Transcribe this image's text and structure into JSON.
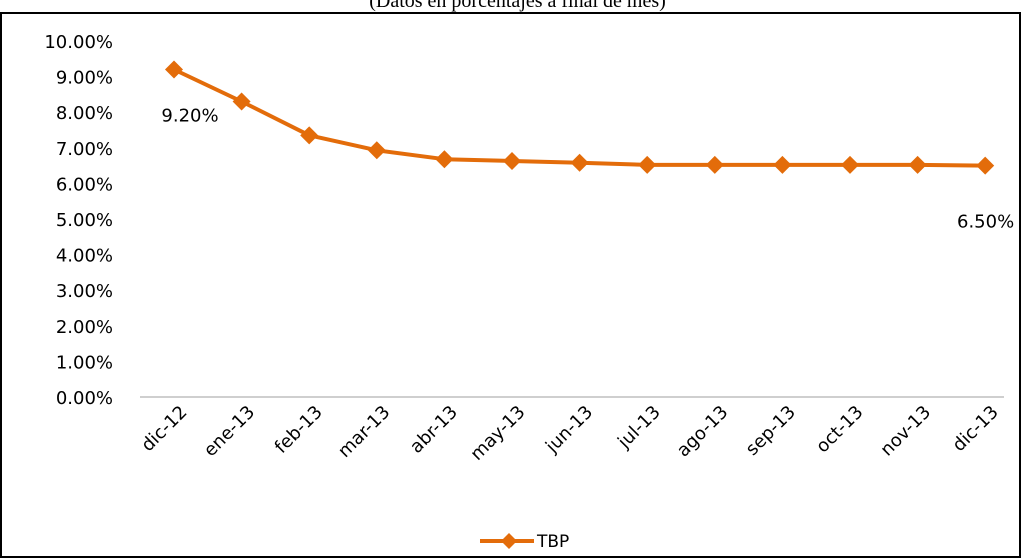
{
  "chart_data": {
    "type": "line",
    "subtitle": "(Datos en porcentajes a final de mes)",
    "categories": [
      "dic-12",
      "ene-13",
      "feb-13",
      "mar-13",
      "abr-13",
      "may-13",
      "jun-13",
      "jul-13",
      "ago-13",
      "sep-13",
      "oct-13",
      "nov-13",
      "dic-13"
    ],
    "series": [
      {
        "name": "TBP",
        "color": "#E36C0A",
        "marker": "diamond",
        "values": [
          9.2,
          8.3,
          7.35,
          6.93,
          6.68,
          6.63,
          6.58,
          6.52,
          6.52,
          6.52,
          6.52,
          6.52,
          6.5
        ]
      }
    ],
    "data_labels": [
      {
        "index": 0,
        "text": "9.20%"
      },
      {
        "index": 12,
        "text": "6.50%"
      }
    ],
    "y_ticks": [
      "0.00%",
      "1.00%",
      "2.00%",
      "3.00%",
      "4.00%",
      "5.00%",
      "6.00%",
      "7.00%",
      "8.00%",
      "9.00%",
      "10.00%"
    ],
    "ylim": [
      0,
      10
    ],
    "grid": false,
    "legend_position": "bottom"
  }
}
